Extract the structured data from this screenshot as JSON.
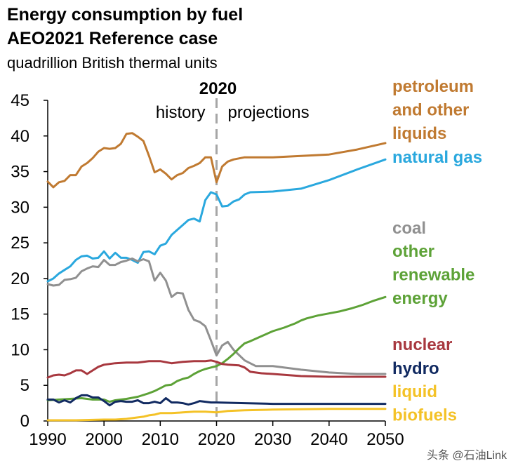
{
  "header": {
    "title_line1": "Energy consumption by fuel",
    "title_line2": "AEO2021 Reference case",
    "units": "quadrillion British thermal units"
  },
  "annotations": {
    "year": "2020",
    "history": "history",
    "projections": "projections"
  },
  "watermark": "头条 @石油Link",
  "chart_data": {
    "type": "line",
    "title": "Energy consumption by fuel AEO2021 Reference case",
    "ylabel": "quadrillion British thermal units",
    "xlim": [
      1990,
      2050
    ],
    "ylim": [
      0,
      45
    ],
    "x_ticks": [
      1990,
      2000,
      2010,
      2020,
      2030,
      2040,
      2050
    ],
    "y_ticks": [
      0,
      5,
      10,
      15,
      20,
      25,
      30,
      35,
      40,
      45
    ],
    "divider_x": 2020,
    "grid": false,
    "legend": "right, labels beside line ends",
    "series": [
      {
        "name": "petroleum and other liquids",
        "label_lines": [
          "petroleum",
          "and other",
          "liquids"
        ],
        "color": "#C07A31",
        "x": [
          1990,
          1991,
          1992,
          1993,
          1994,
          1995,
          1996,
          1997,
          1998,
          1999,
          2000,
          2001,
          2002,
          2003,
          2004,
          2005,
          2006,
          2007,
          2008,
          2009,
          2010,
          2011,
          2012,
          2013,
          2014,
          2015,
          2016,
          2017,
          2018,
          2019,
          2020,
          2021,
          2022,
          2023,
          2025,
          2030,
          2035,
          2040,
          2045,
          2050
        ],
        "y": [
          33.6,
          32.8,
          33.5,
          33.7,
          34.5,
          34.5,
          35.7,
          36.2,
          36.9,
          37.8,
          38.3,
          38.2,
          38.3,
          38.9,
          40.3,
          40.4,
          39.9,
          39.3,
          37.2,
          34.9,
          35.3,
          34.7,
          33.9,
          34.5,
          34.8,
          35.5,
          35.8,
          36.2,
          37.0,
          37.0,
          33.5,
          35.7,
          36.4,
          36.7,
          37.0,
          37.0,
          37.2,
          37.4,
          38.1,
          39.0
        ]
      },
      {
        "name": "natural gas",
        "label_lines": [
          "natural gas"
        ],
        "color": "#2AA8DE",
        "x": [
          1990,
          1991,
          1992,
          1993,
          1994,
          1995,
          1996,
          1997,
          1998,
          1999,
          2000,
          2001,
          2002,
          2003,
          2004,
          2005,
          2006,
          2007,
          2008,
          2009,
          2010,
          2011,
          2012,
          2013,
          2014,
          2015,
          2016,
          2017,
          2018,
          2019,
          2020,
          2021,
          2022,
          2023,
          2024,
          2025,
          2026,
          2030,
          2035,
          2040,
          2045,
          2050
        ],
        "y": [
          19.6,
          20.0,
          20.7,
          21.2,
          21.7,
          22.6,
          23.1,
          23.2,
          22.8,
          22.9,
          23.8,
          22.8,
          23.6,
          22.9,
          22.9,
          22.6,
          22.2,
          23.7,
          23.8,
          23.4,
          24.6,
          24.9,
          26.1,
          26.8,
          27.5,
          28.2,
          28.4,
          28.0,
          31.0,
          32.1,
          31.8,
          30.1,
          30.2,
          30.8,
          31.1,
          31.8,
          32.1,
          32.2,
          32.6,
          33.8,
          35.3,
          36.7
        ]
      },
      {
        "name": "coal",
        "label_lines": [
          "coal"
        ],
        "color": "#909090",
        "x": [
          1990,
          1991,
          1992,
          1993,
          1994,
          1995,
          1996,
          1997,
          1998,
          1999,
          2000,
          2001,
          2002,
          2003,
          2004,
          2005,
          2006,
          2007,
          2008,
          2009,
          2010,
          2011,
          2012,
          2013,
          2014,
          2015,
          2016,
          2017,
          2018,
          2019,
          2020,
          2021,
          2022,
          2023,
          2025,
          2027,
          2030,
          2035,
          2040,
          2045,
          2050
        ],
        "y": [
          19.2,
          19.0,
          19.1,
          19.8,
          19.9,
          20.1,
          21.0,
          21.4,
          21.7,
          21.6,
          22.6,
          21.9,
          21.9,
          22.3,
          22.5,
          22.8,
          22.4,
          22.7,
          22.4,
          19.7,
          20.8,
          19.7,
          17.4,
          18.0,
          17.9,
          15.6,
          14.2,
          13.9,
          13.3,
          11.3,
          9.2,
          10.6,
          11.1,
          10.0,
          8.5,
          7.7,
          7.7,
          7.2,
          6.8,
          6.6,
          6.6
        ]
      },
      {
        "name": "other renewable energy",
        "label_lines": [
          "other",
          "renewable",
          "energy"
        ],
        "color": "#5DA237",
        "x": [
          1990,
          1992,
          1994,
          1996,
          1998,
          2000,
          2001,
          2002,
          2004,
          2006,
          2008,
          2009,
          2010,
          2011,
          2012,
          2013,
          2014,
          2015,
          2016,
          2017,
          2018,
          2019,
          2020,
          2021,
          2022,
          2023,
          2024,
          2025,
          2026,
          2028,
          2030,
          2032,
          2034,
          2035,
          2036,
          2038,
          2040,
          2042,
          2044,
          2046,
          2048,
          2050
        ],
        "y": [
          2.9,
          3.0,
          3.1,
          3.2,
          3.0,
          3.0,
          2.7,
          2.9,
          3.1,
          3.4,
          3.9,
          4.2,
          4.6,
          5.0,
          5.1,
          5.6,
          5.9,
          6.1,
          6.6,
          7.0,
          7.3,
          7.5,
          7.7,
          8.1,
          8.7,
          9.4,
          10.2,
          10.9,
          11.2,
          11.9,
          12.6,
          13.1,
          13.7,
          14.1,
          14.4,
          14.8,
          15.1,
          15.4,
          15.8,
          16.3,
          16.9,
          17.4
        ]
      },
      {
        "name": "nuclear",
        "label_lines": [
          "nuclear"
        ],
        "color": "#A8383F",
        "x": [
          1990,
          1991,
          1992,
          1993,
          1994,
          1995,
          1996,
          1997,
          1998,
          1999,
          2000,
          2002,
          2004,
          2006,
          2008,
          2010,
          2012,
          2014,
          2016,
          2018,
          2019,
          2020,
          2021,
          2022,
          2024,
          2025,
          2026,
          2028,
          2030,
          2035,
          2040,
          2045,
          2050
        ],
        "y": [
          6.1,
          6.4,
          6.5,
          6.4,
          6.7,
          7.1,
          7.1,
          6.6,
          7.1,
          7.6,
          7.9,
          8.1,
          8.2,
          8.2,
          8.4,
          8.4,
          8.1,
          8.3,
          8.4,
          8.4,
          8.5,
          8.3,
          8.0,
          7.9,
          7.8,
          7.5,
          6.9,
          6.7,
          6.6,
          6.3,
          6.2,
          6.2,
          6.2
        ]
      },
      {
        "name": "hydro",
        "label_lines": [
          "hydro"
        ],
        "color": "#112A61",
        "x": [
          1990,
          1991,
          1992,
          1993,
          1994,
          1995,
          1996,
          1997,
          1998,
          1999,
          2000,
          2001,
          2002,
          2003,
          2004,
          2005,
          2006,
          2007,
          2008,
          2009,
          2010,
          2011,
          2012,
          2013,
          2014,
          2015,
          2016,
          2017,
          2018,
          2019,
          2020,
          2025,
          2030,
          2040,
          2050
        ],
        "y": [
          3.0,
          3.0,
          2.6,
          2.9,
          2.6,
          3.2,
          3.6,
          3.6,
          3.3,
          3.3,
          2.8,
          2.2,
          2.7,
          2.8,
          2.7,
          2.7,
          2.9,
          2.5,
          2.5,
          2.7,
          2.5,
          3.2,
          2.6,
          2.6,
          2.5,
          2.3,
          2.5,
          2.8,
          2.7,
          2.6,
          2.6,
          2.5,
          2.4,
          2.4,
          2.4
        ]
      },
      {
        "name": "liquid biofuels",
        "label_lines": [
          "liquid",
          "biofuels"
        ],
        "color": "#F4C227",
        "x": [
          1990,
          1995,
          2000,
          2002,
          2004,
          2006,
          2007,
          2008,
          2009,
          2010,
          2011,
          2012,
          2014,
          2016,
          2018,
          2020,
          2022,
          2025,
          2030,
          2040,
          2050
        ],
        "y": [
          0.1,
          0.1,
          0.2,
          0.2,
          0.3,
          0.5,
          0.6,
          0.8,
          0.9,
          1.1,
          1.1,
          1.1,
          1.2,
          1.3,
          1.3,
          1.2,
          1.4,
          1.5,
          1.6,
          1.7,
          1.7
        ]
      }
    ]
  }
}
